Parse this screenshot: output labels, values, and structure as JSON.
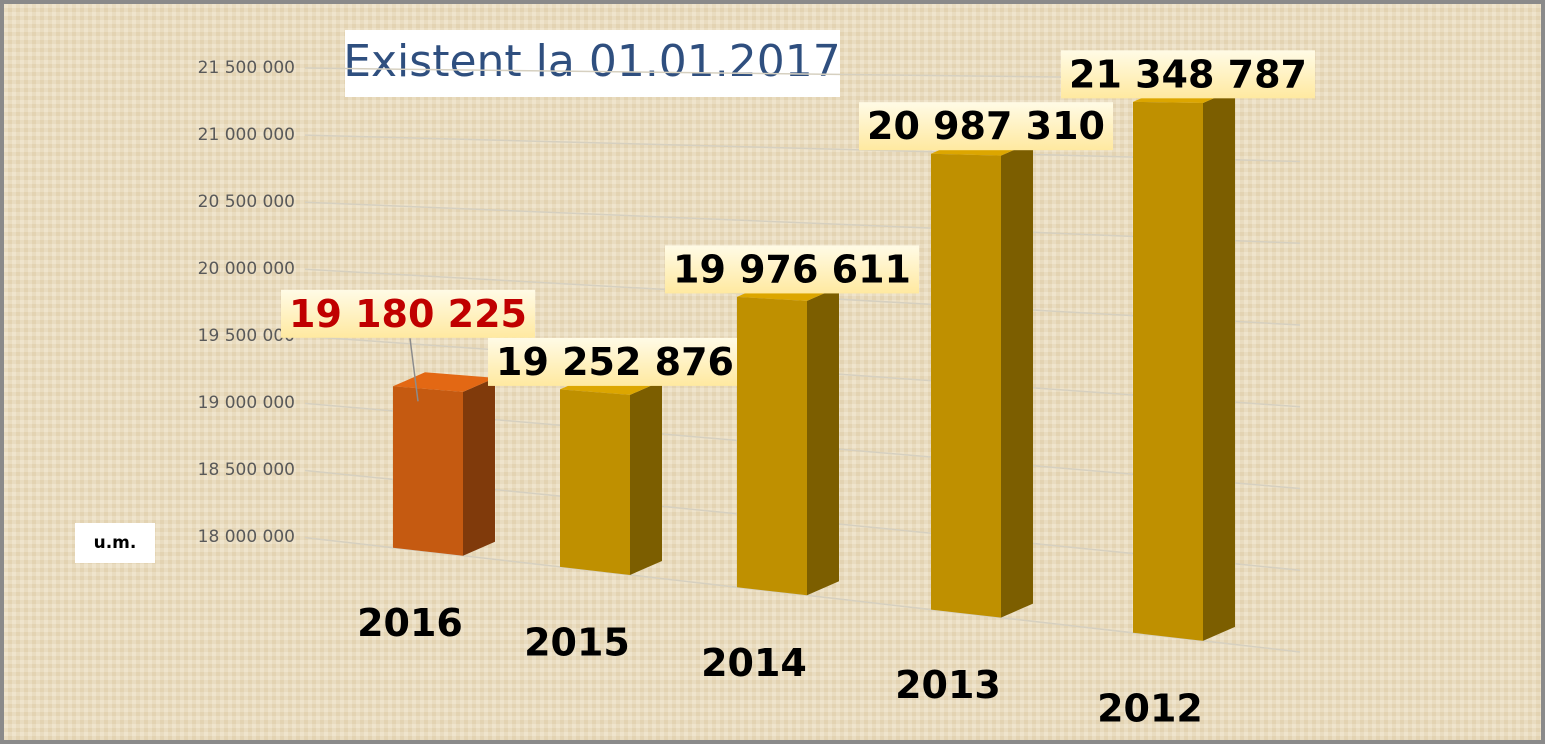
{
  "chart_data": {
    "type": "bar3d",
    "title": "Existent la 01.01.2017",
    "y_label": "u.m.",
    "categories": [
      "2016",
      "2015",
      "2014",
      "2013",
      "2012"
    ],
    "values": [
      19180225,
      19252876,
      19976611,
      20987310,
      21348787
    ],
    "value_labels": [
      "19 180 225",
      "19 252 876",
      "19 976 611",
      "20 987 310",
      "21 348 787"
    ],
    "colors": [
      "#c55a11",
      "#bf9000",
      "#bf9000",
      "#bf9000",
      "#bf9000"
    ],
    "label_colors": [
      "#c00000",
      "#000000",
      "#000000",
      "#000000",
      "#000000"
    ],
    "ylim": [
      18000000,
      21500000
    ],
    "yticks": [
      {
        "value": 18000000,
        "label": "18 000 000"
      },
      {
        "value": 18500000,
        "label": "18 500 000"
      },
      {
        "value": 19000000,
        "label": "19 000 000"
      },
      {
        "value": 19500000,
        "label": "19 500 000"
      },
      {
        "value": 20000000,
        "label": "20 000 000"
      },
      {
        "value": 20500000,
        "label": "20 500 000"
      },
      {
        "value": 21000000,
        "label": "21 000 000"
      },
      {
        "value": 21500000,
        "label": "21 500 000"
      }
    ],
    "grid": true
  }
}
